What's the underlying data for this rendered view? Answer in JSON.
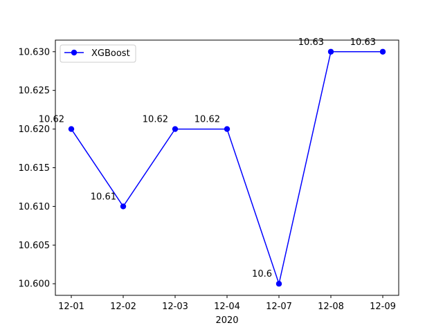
{
  "chart_data": {
    "type": "line",
    "categories": [
      "12-01",
      "12-02",
      "12-03",
      "12-04",
      "12-07",
      "12-08",
      "12-09"
    ],
    "series": [
      {
        "name": "XGBoost",
        "values": [
          10.62,
          10.61,
          10.62,
          10.62,
          10.6,
          10.63,
          10.63
        ],
        "color": "#0000ff",
        "marker": "circle"
      }
    ],
    "data_labels": [
      "10.62",
      "10.61",
      "10.62",
      "10.62",
      "10.6",
      "10.63",
      "10.63"
    ],
    "xlabel": "2020",
    "ylabel": "",
    "title": "",
    "ylim": [
      10.5985,
      10.6315
    ],
    "yticks": [
      10.6,
      10.605,
      10.61,
      10.615,
      10.62,
      10.625,
      10.63
    ],
    "ytick_labels": [
      "10.600",
      "10.605",
      "10.610",
      "10.615",
      "10.620",
      "10.625",
      "10.630"
    ],
    "grid": false,
    "legend_position": "upper-left"
  }
}
